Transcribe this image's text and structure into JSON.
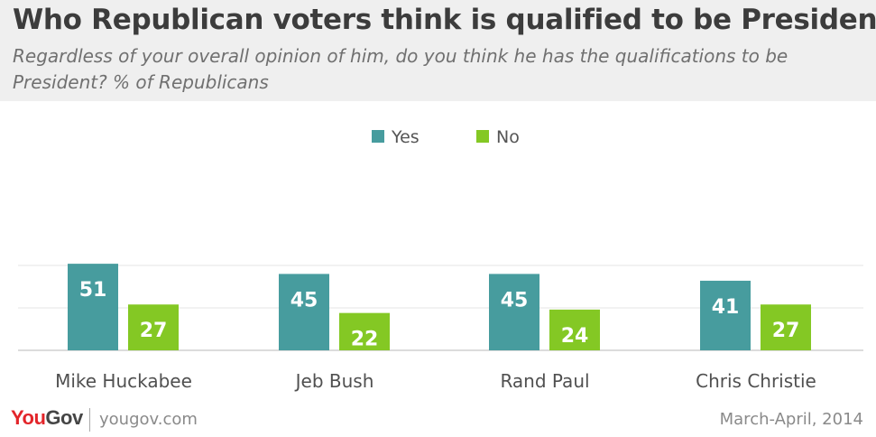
{
  "header": {
    "title": "Who Republican voters think is qualified to be President",
    "subtitle": "Regardless of your overall opinion of him, do you think he has the qualifications to be President? % of Republicans"
  },
  "footer": {
    "logo_part1": "You",
    "logo_part2": "Gov",
    "url": "yougov.com",
    "date": "March-April, 2014"
  },
  "chart_data": {
    "type": "bar",
    "categories": [
      "Mike Huckabee",
      "Jeb Bush",
      "Rand Paul",
      "Chris Christie"
    ],
    "series": [
      {
        "name": "Yes",
        "color": "#479c9e",
        "values": [
          51,
          45,
          45,
          41
        ]
      },
      {
        "name": "No",
        "color": "#84c824",
        "values": [
          27,
          22,
          24,
          27
        ]
      }
    ],
    "ylim": [
      0,
      50
    ],
    "grid": true,
    "legend_position": "top-center"
  }
}
